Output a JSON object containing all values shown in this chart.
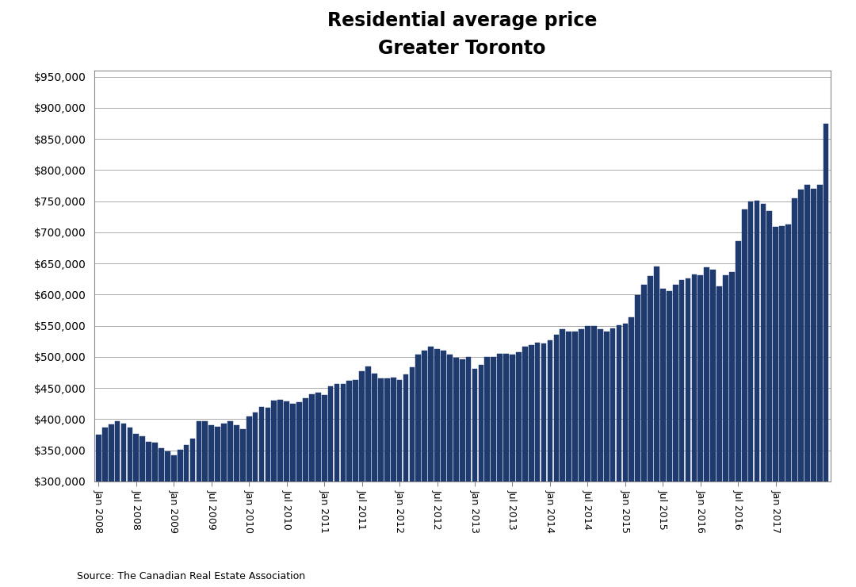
{
  "title_line1": "Residential average price",
  "title_line2": "Greater Toronto",
  "source": "Source: The Canadian Real Estate Association",
  "bar_color": "#1F3A6E",
  "bar_edge_color": "#1F3A6E",
  "background_color": "#FFFFFF",
  "grid_color": "#AAAAAA",
  "ylim": [
    300000,
    960000
  ],
  "yticks": [
    300000,
    350000,
    400000,
    450000,
    500000,
    550000,
    600000,
    650000,
    700000,
    750000,
    800000,
    850000,
    900000,
    950000
  ],
  "values": [
    375000,
    387000,
    392000,
    397000,
    393000,
    386000,
    376000,
    372000,
    364000,
    362000,
    353000,
    348000,
    342000,
    351000,
    358000,
    368000,
    396000,
    396000,
    390000,
    388000,
    393000,
    397000,
    390000,
    384000,
    404000,
    410000,
    420000,
    418000,
    430000,
    431000,
    428000,
    425000,
    427000,
    434000,
    440000,
    442000,
    439000,
    453000,
    456000,
    457000,
    461000,
    463000,
    477000,
    484000,
    473000,
    466000,
    465000,
    467000,
    463000,
    472000,
    483000,
    503000,
    510000,
    516000,
    512000,
    510000,
    503000,
    498000,
    496000,
    500000,
    481000,
    487000,
    500000,
    500000,
    505000,
    505000,
    503000,
    507000,
    516000,
    519000,
    523000,
    521000,
    526000,
    536000,
    544000,
    540000,
    540000,
    545000,
    550000,
    549000,
    545000,
    541000,
    546000,
    551000,
    553000,
    563000,
    599000,
    616000,
    630000,
    645000,
    609000,
    605000,
    616000,
    624000,
    626000,
    632000,
    631000,
    644000,
    640000,
    613000,
    631000,
    636000,
    686000,
    737000,
    749000,
    751000,
    746000,
    734000,
    709000,
    710000,
    713000,
    755000,
    768000,
    776000,
    770000,
    776000,
    875000
  ],
  "xtick_positions": [
    0,
    6,
    12,
    18,
    24,
    30,
    36,
    42,
    48,
    54,
    60,
    66,
    72,
    78,
    84,
    90,
    96,
    102,
    108
  ],
  "xtick_labels": [
    "Jan 2008",
    "Jul 2008",
    "Jan 2009",
    "Jul 2009",
    "Jan 2010",
    "Jul 2010",
    "Jan 2011",
    "Jul 2011",
    "Jan 2012",
    "Jul 2012",
    "Jan 2013",
    "Jul 2013",
    "Jan 2014",
    "Jul 2014",
    "Jan 2015",
    "Jul 2015",
    "Jan 2016",
    "Jul 2016",
    "Jan 2017"
  ]
}
